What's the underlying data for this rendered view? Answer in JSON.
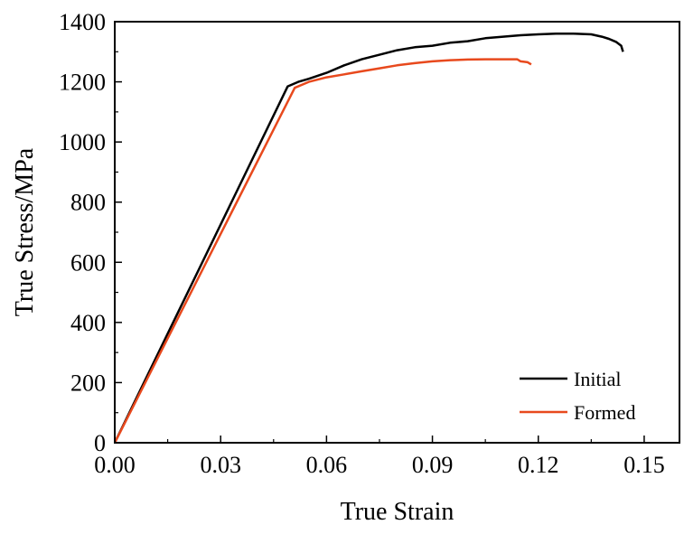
{
  "chart_data": {
    "type": "line",
    "title": "",
    "xlabel": "True Strain",
    "ylabel": "True Stress/MPa",
    "xlim": [
      0.0,
      0.16
    ],
    "ylim": [
      0,
      1400
    ],
    "x_ticks": [
      "0.00",
      "0.03",
      "0.06",
      "0.09",
      "0.12",
      "0.15"
    ],
    "y_ticks": [
      "0",
      "200",
      "400",
      "600",
      "800",
      "1000",
      "1200",
      "1400"
    ],
    "grid": false,
    "legend_position": "bottom-right",
    "series": [
      {
        "name": "Initial",
        "color": "#000000",
        "x": [
          0.0,
          0.049,
          0.052,
          0.055,
          0.06,
          0.065,
          0.07,
          0.075,
          0.08,
          0.085,
          0.09,
          0.095,
          0.1,
          0.105,
          0.11,
          0.115,
          0.12,
          0.125,
          0.13,
          0.135,
          0.138,
          0.14,
          0.142,
          0.1435,
          0.144
        ],
        "y": [
          0,
          1185,
          1200,
          1210,
          1230,
          1255,
          1275,
          1290,
          1305,
          1315,
          1320,
          1330,
          1335,
          1345,
          1350,
          1355,
          1358,
          1360,
          1360,
          1358,
          1350,
          1343,
          1333,
          1320,
          1300
        ]
      },
      {
        "name": "Formed",
        "color": "#e8491d",
        "x": [
          0.0,
          0.051,
          0.055,
          0.06,
          0.065,
          0.07,
          0.075,
          0.08,
          0.085,
          0.09,
          0.095,
          0.1,
          0.105,
          0.11,
          0.114,
          0.115,
          0.117,
          0.118
        ],
        "y": [
          0,
          1180,
          1200,
          1215,
          1225,
          1235,
          1245,
          1255,
          1262,
          1268,
          1272,
          1274,
          1275,
          1275,
          1275,
          1268,
          1265,
          1258
        ]
      }
    ]
  }
}
